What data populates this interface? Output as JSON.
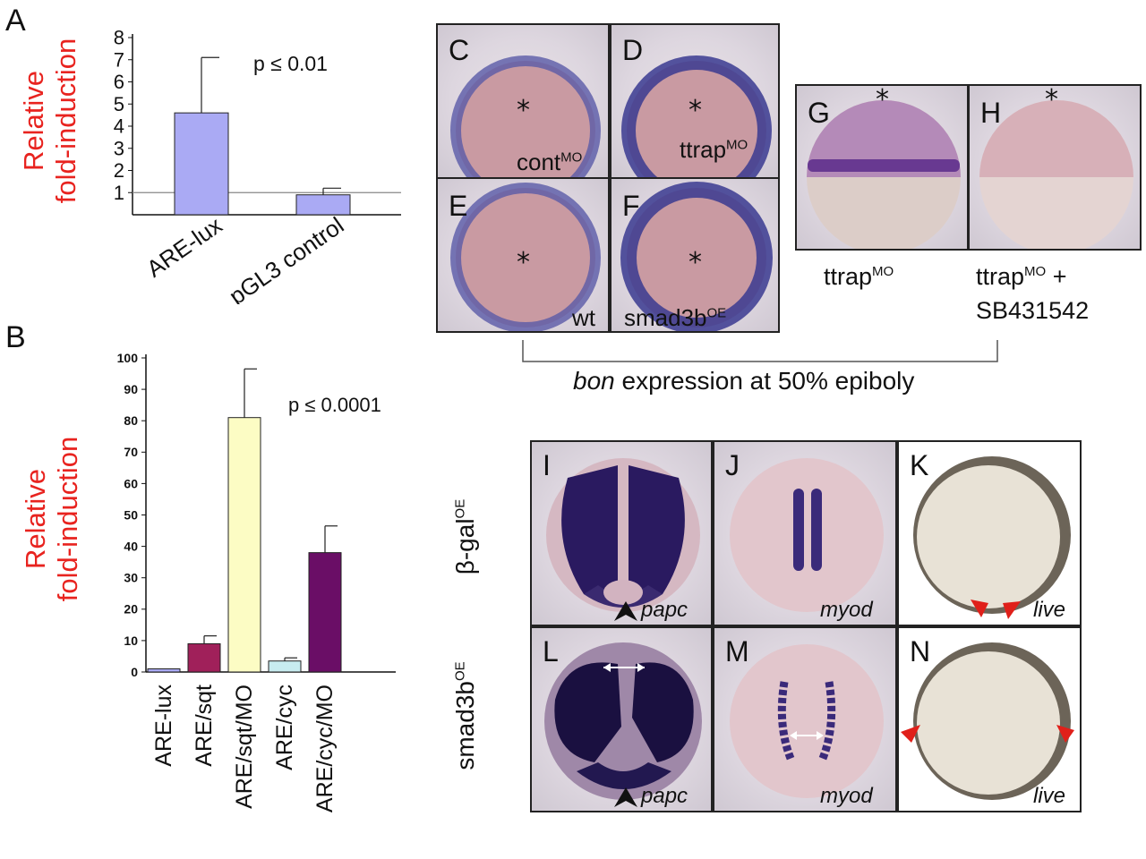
{
  "figure": {
    "panel_letters": [
      "A",
      "B",
      "C",
      "D",
      "E",
      "F",
      "G",
      "H",
      "I",
      "J",
      "K",
      "L",
      "M",
      "N"
    ],
    "C": {
      "label": "cont",
      "sup": "MO"
    },
    "D": {
      "label": "ttrap",
      "sup": "MO"
    },
    "E": {
      "label": "wt"
    },
    "F": {
      "label": "smad3b",
      "sup": "OE"
    },
    "G_caption": {
      "label": "ttrap",
      "sup": "MO"
    },
    "H_caption": {
      "line1": "ttrap",
      "sup": "MO",
      "suffix": " +",
      "line2": "SB431542"
    },
    "bracket_caption": {
      "italic": "bon",
      "rest": " expression at 50% epiboly"
    },
    "row_labels": {
      "top": {
        "label": "β-gal",
        "sup": "OE"
      },
      "bottom": {
        "label": "smad3b",
        "sup": "OE"
      }
    },
    "genes": {
      "I": "papc",
      "J": "myod",
      "K": "live",
      "L": "papc",
      "M": "myod",
      "N": "live"
    },
    "star": "*"
  },
  "chart_data": [
    {
      "panel": "A",
      "type": "bar",
      "categories": [
        "ARE-lux",
        "pGL3 control"
      ],
      "values": [
        4.6,
        0.9
      ],
      "errors": [
        2.5,
        0.3
      ],
      "colors": [
        "#aaaaf4",
        "#aaaaf4"
      ],
      "ylabel": [
        "Relative",
        "fold-induction"
      ],
      "ylabel_color": "#e8231f",
      "ylim": [
        0,
        8
      ],
      "yticks": [
        1,
        2,
        3,
        4,
        5,
        6,
        7,
        8
      ],
      "reference_line": 1,
      "annotation": "p ≤ 0.01"
    },
    {
      "panel": "B",
      "type": "bar",
      "categories": [
        "ARE-lux",
        "ARE/sqt",
        "ARE/sqt/MO",
        "ARE/cyc",
        "ARE/cyc/MO"
      ],
      "values": [
        1,
        9,
        81,
        3.5,
        38
      ],
      "errors": [
        0,
        2.5,
        15.5,
        1,
        8.5
      ],
      "colors": [
        "#aaaaf4",
        "#a0205a",
        "#fcfcc4",
        "#c8ecf0",
        "#6a0e66"
      ],
      "ylabel": [
        "Relative",
        "fold-induction"
      ],
      "ylabel_color": "#e8231f",
      "ylim": [
        0,
        100
      ],
      "yticks": [
        0,
        10,
        20,
        30,
        40,
        50,
        60,
        70,
        80,
        90,
        100
      ],
      "annotation": "p ≤ 0.0001"
    }
  ]
}
